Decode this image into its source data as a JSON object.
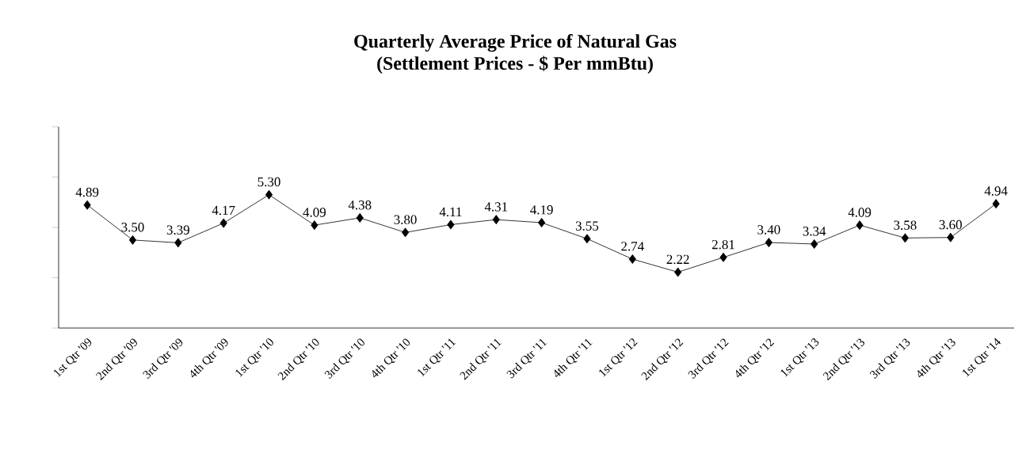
{
  "chart_data": {
    "type": "line",
    "title": "Quarterly Average Price of Natural Gas",
    "subtitle": "(Settlement Prices - $ Per mmBtu)",
    "categories": [
      "1st Qtr '09",
      "2nd Qtr '09",
      "3rd Qtr '09",
      "4th Qtr '09",
      "1st Qtr '10",
      "2nd Qtr '10",
      "3rd Qtr '10",
      "4th Qtr '10",
      "1st Qtr '11",
      "2nd Qtr '11",
      "3rd Qtr '11",
      "4th Qtr '11",
      "1st Qtr '12",
      "2nd Qtr '12",
      "3rd Qtr '12",
      "4th Qtr '12",
      "1st Qtr '13",
      "2nd Qtr '13",
      "3rd Qtr '13",
      "4th Qtr '13",
      "1st Qtr '14"
    ],
    "values": [
      4.89,
      3.5,
      3.39,
      4.17,
      5.3,
      4.09,
      4.38,
      3.8,
      4.11,
      4.31,
      4.19,
      3.55,
      2.74,
      2.22,
      2.81,
      3.4,
      3.34,
      4.09,
      3.58,
      3.6,
      4.94
    ],
    "value_labels": [
      "4.89",
      "3.50",
      "3.39",
      "4.17",
      "5.30",
      "4.09",
      "4.38",
      "3.80",
      "4.11",
      "4.31",
      "4.19",
      "3.55",
      "2.74",
      "2.22",
      "2.81",
      "3.40",
      "3.34",
      "4.09",
      "3.58",
      "3.60",
      "4.94"
    ],
    "color": "#000000",
    "marker": "diamond",
    "line_style": "solid",
    "ylim": [
      0,
      8
    ],
    "yticks": [
      {
        "value": 0,
        "label": null
      },
      {
        "value": 2,
        "label": null
      },
      {
        "value": 4,
        "label": null
      },
      {
        "value": 6,
        "label": null
      },
      {
        "value": 8,
        "label": null
      }
    ],
    "tick_labels": "x",
    "grid": false
  }
}
